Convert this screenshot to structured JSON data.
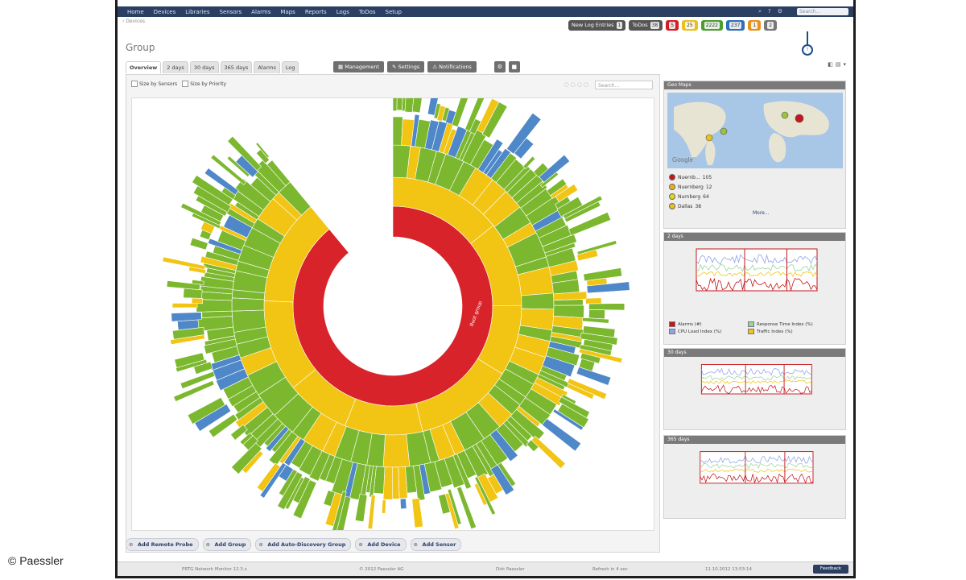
{
  "watermark": "© Paessler",
  "nav": {
    "items": [
      "Home",
      "Devices",
      "Libraries",
      "Sensors",
      "Alarms",
      "Maps",
      "Reports",
      "Logs",
      "ToDos",
      "Setup"
    ],
    "search_placeholder": "Search..."
  },
  "breadcrumb": "‹ Devices",
  "status": {
    "new_log": {
      "label": "New Log Entries",
      "count": "1"
    },
    "todos": {
      "label": "ToDos",
      "count": "38"
    },
    "badges": [
      {
        "color": "red",
        "count": "5"
      },
      {
        "color": "yellow",
        "count": "25"
      },
      {
        "color": "green",
        "count": "2222"
      },
      {
        "color": "blue",
        "count": "237"
      },
      {
        "color": "orange",
        "count": "1"
      },
      {
        "color": "grey",
        "count": "2"
      }
    ]
  },
  "page": {
    "title": "Group"
  },
  "tabs": [
    "Overview",
    "2 days",
    "30 days",
    "365 days",
    "Alarms",
    "Log"
  ],
  "toolbar": {
    "management": "Management",
    "settings": "Settings",
    "notifications": "Notifications"
  },
  "sizeby": {
    "sensors": "Size by Sensors",
    "priority": "Size by Priority"
  },
  "panel_search_placeholder": "Search...",
  "sunburst": {
    "center_label": "Root group",
    "colors": {
      "red": "#d9232a",
      "yellow": "#f2c414",
      "green": "#7cb82f",
      "blue": "#4f88c8",
      "white": "#ffffff"
    }
  },
  "side": {
    "geomap": {
      "title": "Geo Maps",
      "locations": [
        {
          "name": "Nuernb...",
          "count": "105",
          "color": "#c4161c"
        },
        {
          "name": "Nuernberg",
          "count": "12",
          "color": "#e9b21d"
        },
        {
          "name": "Nurnberg",
          "count": "64",
          "color": "#e9d41d"
        },
        {
          "name": "Dallas",
          "count": "38",
          "color": "#e9c11d"
        }
      ],
      "more": "More...",
      "map_label": "Google"
    },
    "g2": {
      "title": "2 days",
      "legend": [
        {
          "label": "Alarms (#)",
          "color": "#c4161c"
        },
        {
          "label": "Response Time Index (%)",
          "color": "#9bd39b"
        },
        {
          "label": "CPU Load Index (%)",
          "color": "#8fa3e6"
        },
        {
          "label": "Traffic Index (%)",
          "color": "#f2c414"
        }
      ]
    },
    "g30": {
      "title": "30 days"
    },
    "g365": {
      "title": "365 days"
    }
  },
  "bottom": {
    "add_probe": "Add Remote Probe",
    "add_group": "Add Group",
    "add_auto": "Add Auto-Discovery Group",
    "add_device": "Add Device",
    "add_sensor": "Add Sensor"
  },
  "footer": {
    "left": "PRTG Network Monitor 12.3.x",
    "mid": "© 2012 Paessler AG",
    "user": "Dirk Paessler",
    "refresh": "Refresh in 4 sec",
    "date": "11.10.2012 13:53:14",
    "feedback": "Feedback"
  }
}
